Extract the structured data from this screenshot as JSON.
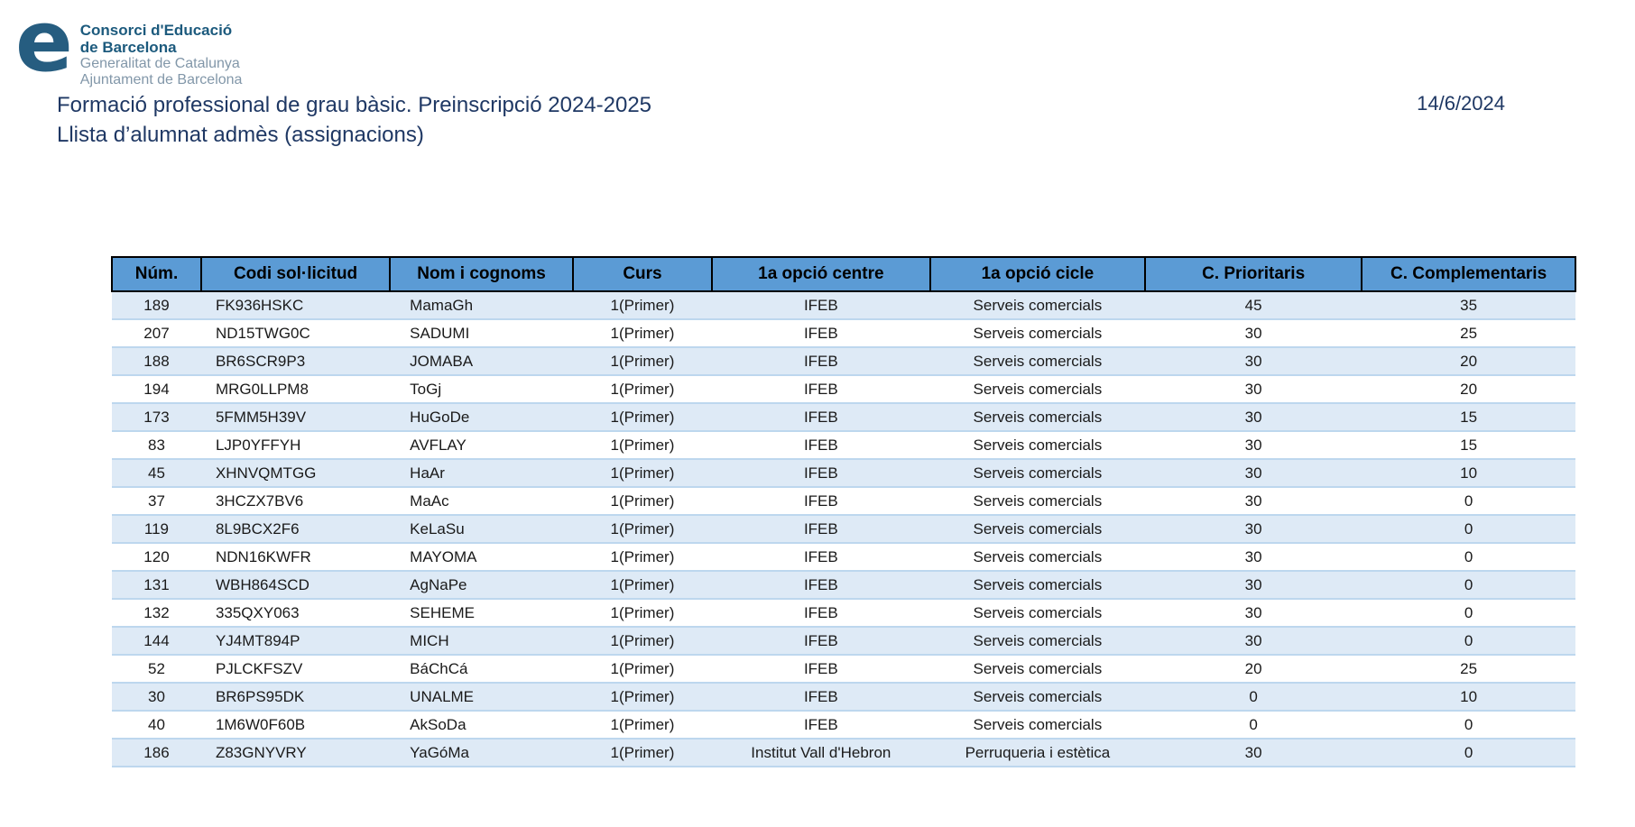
{
  "logo": {
    "letter": "e",
    "org_line1": "Consorci d'Educació",
    "org_line2": "de Barcelona",
    "sub_line1": "Generalitat de Catalunya",
    "sub_line2": "Ajuntament de Barcelona"
  },
  "header": {
    "title_line1": "Formació professional de grau bàsic. Preinscripció 2024-2025",
    "title_line2": "Llista d’alumnat admès (assignacions)",
    "date": "14/6/2024"
  },
  "colors": {
    "title_navy": "#1F3864",
    "logo_blue": "#265D80",
    "logo_gray": "#8297A9",
    "table_header_blue": "#5B9BD5",
    "row_stripe_blue": "#DEEAF6",
    "row_border_blue": "#BDD7EE"
  },
  "table": {
    "columns": [
      "Núm.",
      "Codi sol·licitud",
      "Nom i cognoms",
      "Curs",
      "1a opció centre",
      "1a opció cicle",
      "C. Prioritaris",
      "C. Complementaris"
    ],
    "rows": [
      [
        "189",
        "FK936HSKC",
        "MamaGh",
        "1(Primer)",
        "IFEB",
        "Serveis comercials",
        "45",
        "35"
      ],
      [
        "207",
        "ND15TWG0C",
        "SADUMI",
        "1(Primer)",
        "IFEB",
        "Serveis comercials",
        "30",
        "25"
      ],
      [
        "188",
        "BR6SCR9P3",
        "JOMABA",
        "1(Primer)",
        "IFEB",
        "Serveis comercials",
        "30",
        "20"
      ],
      [
        "194",
        "MRG0LLPM8",
        "ToGj",
        "1(Primer)",
        "IFEB",
        "Serveis comercials",
        "30",
        "20"
      ],
      [
        "173",
        "5FMM5H39V",
        "HuGoDe",
        "1(Primer)",
        "IFEB",
        "Serveis comercials",
        "30",
        "15"
      ],
      [
        "83",
        "LJP0YFFYH",
        "AVFLAY",
        "1(Primer)",
        "IFEB",
        "Serveis comercials",
        "30",
        "15"
      ],
      [
        "45",
        "XHNVQMTGG",
        "HaAr",
        "1(Primer)",
        "IFEB",
        "Serveis comercials",
        "30",
        "10"
      ],
      [
        "37",
        "3HCZX7BV6",
        "MaAc",
        "1(Primer)",
        "IFEB",
        "Serveis comercials",
        "30",
        "0"
      ],
      [
        "119",
        "8L9BCX2F6",
        "KeLaSu",
        "1(Primer)",
        "IFEB",
        "Serveis comercials",
        "30",
        "0"
      ],
      [
        "120",
        "NDN16KWFR",
        "MAYOMA",
        "1(Primer)",
        "IFEB",
        "Serveis comercials",
        "30",
        "0"
      ],
      [
        "131",
        "WBH864SCD",
        "AgNaPe",
        "1(Primer)",
        "IFEB",
        "Serveis comercials",
        "30",
        "0"
      ],
      [
        "132",
        "335QXY063",
        "SEHEME",
        "1(Primer)",
        "IFEB",
        "Serveis comercials",
        "30",
        "0"
      ],
      [
        "144",
        "YJ4MT894P",
        "MICH",
        "1(Primer)",
        "IFEB",
        "Serveis comercials",
        "30",
        "0"
      ],
      [
        "52",
        "PJLCKFSZV",
        "BáChCá",
        "1(Primer)",
        "IFEB",
        "Serveis comercials",
        "20",
        "25"
      ],
      [
        "30",
        "BR6PS95DK",
        "UNALME",
        "1(Primer)",
        "IFEB",
        "Serveis comercials",
        "0",
        "10"
      ],
      [
        "40",
        "1M6W0F60B",
        "AkSoDa",
        "1(Primer)",
        "IFEB",
        "Serveis comercials",
        "0",
        "0"
      ],
      [
        "186",
        "Z83GNYVRY",
        "YaGóMa",
        "1(Primer)",
        "Institut Vall d'Hebron",
        "Perruqueria i estètica",
        "30",
        "0"
      ]
    ],
    "column_widths_pct": [
      6.1,
      12.9,
      12.5,
      9.5,
      14.9,
      14.7,
      14.8,
      14.6
    ]
  }
}
